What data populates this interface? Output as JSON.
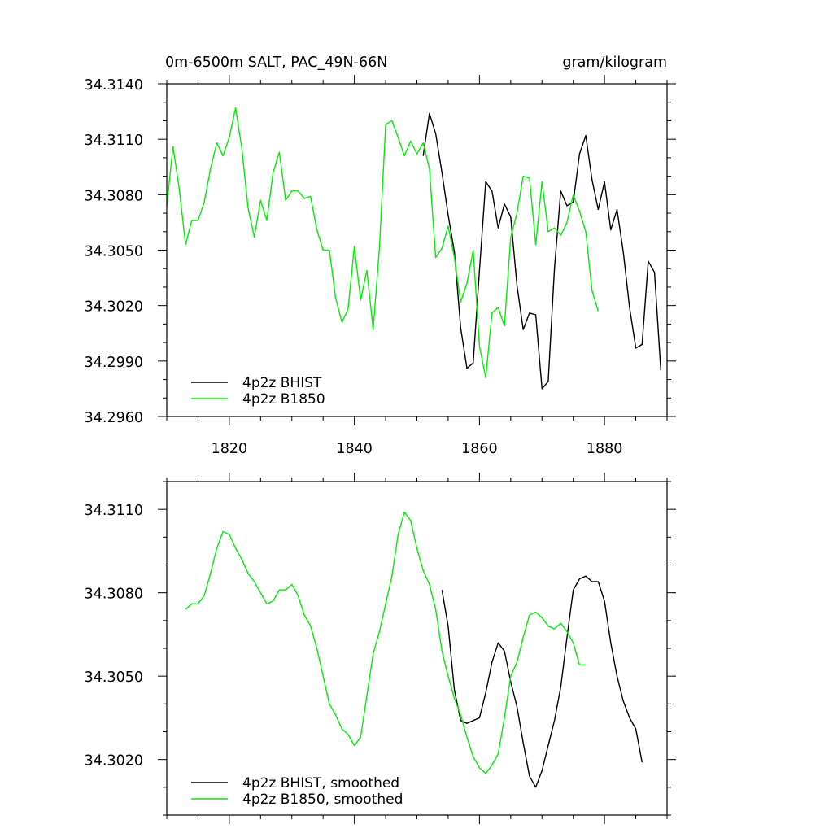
{
  "chart_data": [
    {
      "type": "line",
      "title_left": "0m-6500m SALT, PAC_49N-66N",
      "title_right": "gram/kilogram",
      "xlim": [
        1810,
        1890
      ],
      "ylim": [
        34.296,
        34.314
      ],
      "xticks": [
        1820,
        1840,
        1860,
        1880
      ],
      "xticks_labels": [
        "1820",
        "1840",
        "1860",
        "1880"
      ],
      "yticks": [
        34.296,
        34.299,
        34.302,
        34.305,
        34.308,
        34.311,
        34.314
      ],
      "yticks_labels": [
        "34.2960",
        "34.2990",
        "34.3020",
        "34.3050",
        "34.3080",
        "34.3110",
        "34.3140"
      ],
      "legend": {
        "position": "bottom-left",
        "entries": [
          "4p2z BHIST",
          "4p2z B1850"
        ]
      },
      "series": [
        {
          "name": "4p2z BHIST",
          "color": "#000000",
          "x": [
            1851,
            1852,
            1853,
            1854,
            1855,
            1856,
            1857,
            1858,
            1859,
            1860,
            1861,
            1862,
            1863,
            1864,
            1865,
            1866,
            1867,
            1868,
            1869,
            1870,
            1871,
            1872,
            1873,
            1874,
            1875,
            1876,
            1877,
            1878,
            1879,
            1880,
            1881,
            1882,
            1883,
            1884,
            1885,
            1886,
            1887,
            1888,
            1889
          ],
          "values": [
            34.3101,
            34.3124,
            34.3113,
            34.3092,
            34.3069,
            34.3049,
            34.3008,
            34.2986,
            34.2989,
            34.3039,
            34.3087,
            34.3082,
            34.3062,
            34.3075,
            34.3068,
            34.3031,
            34.3007,
            34.3016,
            34.3015,
            34.2975,
            34.2979,
            34.304,
            34.3082,
            34.3074,
            34.3076,
            34.3102,
            34.3112,
            34.3088,
            34.3072,
            34.3087,
            34.3061,
            34.3072,
            34.3049,
            34.3019,
            34.2997,
            34.2999,
            34.3044,
            34.3038,
            34.2985
          ]
        },
        {
          "name": "4p2z B1850",
          "color": "#00ee00",
          "x": [
            1810,
            1811,
            1812,
            1813,
            1814,
            1815,
            1816,
            1817,
            1818,
            1819,
            1820,
            1821,
            1822,
            1823,
            1824,
            1825,
            1826,
            1827,
            1828,
            1829,
            1830,
            1831,
            1832,
            1833,
            1834,
            1835,
            1836,
            1837,
            1838,
            1839,
            1840,
            1841,
            1842,
            1843,
            1844,
            1845,
            1846,
            1847,
            1848,
            1849,
            1850,
            1851,
            1852,
            1853,
            1854,
            1855,
            1856,
            1857,
            1858,
            1859,
            1860,
            1861,
            1862,
            1863,
            1864,
            1865,
            1866,
            1867,
            1868,
            1869,
            1870,
            1871,
            1872,
            1873,
            1874,
            1875,
            1876,
            1877,
            1878,
            1879
          ],
          "values": [
            34.3074,
            34.3106,
            34.3083,
            34.3053,
            34.3066,
            34.3066,
            34.3076,
            34.3094,
            34.3108,
            34.3101,
            34.3111,
            34.3127,
            34.3105,
            34.3073,
            34.3057,
            34.3077,
            34.3066,
            34.3092,
            34.3103,
            34.3077,
            34.3082,
            34.3082,
            34.3078,
            34.3079,
            34.3061,
            34.305,
            34.305,
            34.3024,
            34.3011,
            34.3018,
            34.3052,
            34.3023,
            34.3039,
            34.3007,
            34.3051,
            34.3118,
            34.312,
            34.3111,
            34.3101,
            34.3109,
            34.3102,
            34.3108,
            34.3094,
            34.3046,
            34.3051,
            34.3063,
            34.3046,
            34.3022,
            34.3032,
            34.305,
            34.2998,
            34.2981,
            34.3016,
            34.3019,
            34.3009,
            34.3057,
            34.307,
            34.309,
            34.3089,
            34.3053,
            34.3087,
            34.306,
            34.3062,
            34.3058,
            34.3065,
            34.308,
            34.3071,
            34.306,
            34.3028,
            34.3017
          ]
        }
      ]
    },
    {
      "type": "line",
      "title_left": "",
      "title_right": "",
      "xlim": [
        1810,
        1890
      ],
      "ylim": [
        34.3,
        34.312
      ],
      "xticks": [
        1820,
        1840,
        1860,
        1880
      ],
      "xticks_labels": [
        "",
        "",
        "",
        ""
      ],
      "yticks": [
        34.302,
        34.305,
        34.308,
        34.311
      ],
      "yticks_labels": [
        "34.3020",
        "34.3050",
        "34.3080",
        "34.3110"
      ],
      "legend": {
        "position": "bottom-left",
        "entries": [
          "4p2z BHIST, smoothed",
          "4p2z B1850, smoothed"
        ]
      },
      "series": [
        {
          "name": "4p2z BHIST, smoothed",
          "color": "#000000",
          "x": [
            1854,
            1855,
            1856,
            1857,
            1858,
            1859,
            1860,
            1861,
            1862,
            1863,
            1864,
            1865,
            1866,
            1867,
            1868,
            1869,
            1870,
            1871,
            1872,
            1873,
            1874,
            1875,
            1876,
            1877,
            1878,
            1879,
            1880,
            1881,
            1882,
            1883,
            1884,
            1885,
            1886
          ],
          "values": [
            34.3081,
            34.3068,
            34.3045,
            34.3034,
            34.3033,
            34.3034,
            34.3035,
            34.3044,
            34.3055,
            34.3062,
            34.3059,
            34.3048,
            34.3039,
            34.3026,
            34.3014,
            34.301,
            34.3016,
            34.3025,
            34.3034,
            34.3046,
            34.3064,
            34.3081,
            34.3085,
            34.3086,
            34.3084,
            34.3084,
            34.3077,
            34.3062,
            34.305,
            34.3041,
            34.3035,
            34.3031,
            34.3019
          ]
        },
        {
          "name": "4p2z B1850, smoothed",
          "color": "#00ee00",
          "x": [
            1813,
            1814,
            1815,
            1816,
            1817,
            1818,
            1819,
            1820,
            1821,
            1822,
            1823,
            1824,
            1825,
            1826,
            1827,
            1828,
            1829,
            1830,
            1831,
            1832,
            1833,
            1834,
            1835,
            1836,
            1837,
            1838,
            1839,
            1840,
            1841,
            1842,
            1843,
            1844,
            1845,
            1846,
            1847,
            1848,
            1849,
            1850,
            1851,
            1852,
            1853,
            1854,
            1855,
            1856,
            1857,
            1858,
            1859,
            1860,
            1861,
            1862,
            1863,
            1864,
            1865,
            1866,
            1867,
            1868,
            1869,
            1870,
            1871,
            1872,
            1873,
            1874,
            1875,
            1876,
            1877
          ],
          "values": [
            34.3074,
            34.3076,
            34.3076,
            34.3079,
            34.3087,
            34.3096,
            34.3102,
            34.3101,
            34.3096,
            34.3092,
            34.3087,
            34.3084,
            34.308,
            34.3076,
            34.3077,
            34.3081,
            34.3081,
            34.3083,
            34.3079,
            34.3072,
            34.3068,
            34.306,
            34.305,
            34.304,
            34.3036,
            34.3031,
            34.3029,
            34.3025,
            34.3028,
            34.3043,
            34.3058,
            34.3066,
            34.3076,
            34.3086,
            34.3101,
            34.3109,
            34.3106,
            34.3096,
            34.3088,
            34.3083,
            34.3074,
            34.3059,
            34.305,
            34.3042,
            34.3036,
            34.3028,
            34.3021,
            34.3017,
            34.3015,
            34.3018,
            34.3022,
            34.3035,
            34.305,
            34.3055,
            34.3064,
            34.3072,
            34.3073,
            34.3071,
            34.3068,
            34.3067,
            34.3069,
            34.3066,
            34.3062,
            34.3054,
            34.3054
          ]
        }
      ]
    }
  ]
}
